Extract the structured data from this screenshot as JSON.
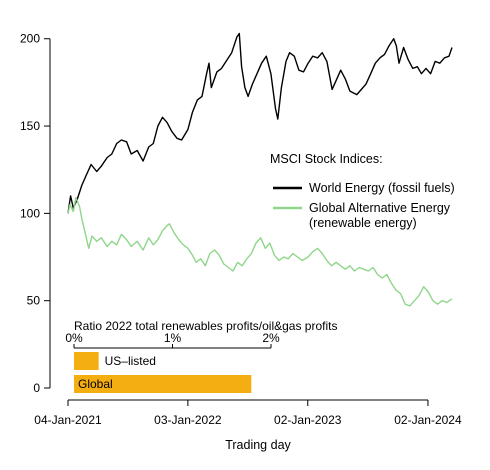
{
  "chart_data": {
    "type": "line",
    "title": "",
    "xlabel": "Trading day",
    "ylabel": "",
    "x_ticks": [
      "04-Jan-2021",
      "03-Jan-2022",
      "02-Jan-2023",
      "02-Jan-2024"
    ],
    "x_range": [
      "2021-01-04",
      "2024-03-15"
    ],
    "y_ticks": [
      0,
      50,
      100,
      150,
      200
    ],
    "ylim": [
      0,
      205
    ],
    "grid": false,
    "legend": {
      "title": "MSCI Stock Indices:",
      "position": "center-right",
      "entries": [
        {
          "label": "World Energy (fossil fuels)",
          "color": "#000000"
        },
        {
          "label_line1": "Global Alternative Energy",
          "label_line2": "(renewable energy)",
          "color": "#8fd68a"
        }
      ]
    },
    "series": [
      {
        "name": "World Energy (fossil fuels)",
        "color": "#000000",
        "points": [
          [
            "2021-01-04",
            100
          ],
          [
            "2021-01-12",
            110
          ],
          [
            "2021-01-20",
            103
          ],
          [
            "2021-02-01",
            108
          ],
          [
            "2021-02-15",
            116
          ],
          [
            "2021-03-01",
            122
          ],
          [
            "2021-03-15",
            128
          ],
          [
            "2021-04-01",
            124
          ],
          [
            "2021-04-15",
            127
          ],
          [
            "2021-05-03",
            132
          ],
          [
            "2021-05-17",
            134
          ],
          [
            "2021-06-01",
            140
          ],
          [
            "2021-06-15",
            142
          ],
          [
            "2021-07-01",
            141
          ],
          [
            "2021-07-15",
            134
          ],
          [
            "2021-08-02",
            136
          ],
          [
            "2021-08-20",
            130
          ],
          [
            "2021-09-06",
            138
          ],
          [
            "2021-09-20",
            140
          ],
          [
            "2021-10-04",
            150
          ],
          [
            "2021-10-18",
            155
          ],
          [
            "2021-11-01",
            152
          ],
          [
            "2021-11-15",
            147
          ],
          [
            "2021-12-01",
            143
          ],
          [
            "2021-12-15",
            142
          ],
          [
            "2022-01-03",
            148
          ],
          [
            "2022-01-17",
            158
          ],
          [
            "2022-02-01",
            165
          ],
          [
            "2022-02-15",
            167
          ],
          [
            "2022-03-01",
            180
          ],
          [
            "2022-03-08",
            186
          ],
          [
            "2022-03-15",
            172
          ],
          [
            "2022-04-01",
            181
          ],
          [
            "2022-04-15",
            183
          ],
          [
            "2022-05-02",
            188
          ],
          [
            "2022-05-16",
            192
          ],
          [
            "2022-06-01",
            201
          ],
          [
            "2022-06-08",
            203
          ],
          [
            "2022-06-15",
            184
          ],
          [
            "2022-06-25",
            172
          ],
          [
            "2022-07-05",
            167
          ],
          [
            "2022-07-18",
            174
          ],
          [
            "2022-08-01",
            180
          ],
          [
            "2022-08-15",
            186
          ],
          [
            "2022-08-29",
            190
          ],
          [
            "2022-09-12",
            180
          ],
          [
            "2022-09-26",
            160
          ],
          [
            "2022-10-03",
            154
          ],
          [
            "2022-10-14",
            172
          ],
          [
            "2022-10-28",
            187
          ],
          [
            "2022-11-08",
            192
          ],
          [
            "2022-11-22",
            190
          ],
          [
            "2022-12-06",
            182
          ],
          [
            "2022-12-20",
            181
          ],
          [
            "2023-01-03",
            186
          ],
          [
            "2023-01-17",
            190
          ],
          [
            "2023-02-01",
            189
          ],
          [
            "2023-02-15",
            192
          ],
          [
            "2023-03-01",
            187
          ],
          [
            "2023-03-17",
            171
          ],
          [
            "2023-03-29",
            176
          ],
          [
            "2023-04-12",
            182
          ],
          [
            "2023-04-26",
            177
          ],
          [
            "2023-05-10",
            170
          ],
          [
            "2023-05-31",
            168
          ],
          [
            "2023-06-14",
            171
          ],
          [
            "2023-06-28",
            174
          ],
          [
            "2023-07-12",
            180
          ],
          [
            "2023-07-26",
            186
          ],
          [
            "2023-08-09",
            189
          ],
          [
            "2023-08-23",
            191
          ],
          [
            "2023-09-06",
            196
          ],
          [
            "2023-09-20",
            200
          ],
          [
            "2023-09-28",
            196
          ],
          [
            "2023-10-06",
            186
          ],
          [
            "2023-10-20",
            195
          ],
          [
            "2023-11-03",
            188
          ],
          [
            "2023-11-17",
            183
          ],
          [
            "2023-12-01",
            184
          ],
          [
            "2023-12-13",
            180
          ],
          [
            "2023-12-27",
            183
          ],
          [
            "2024-01-10",
            180
          ],
          [
            "2024-01-24",
            187
          ],
          [
            "2024-02-07",
            186
          ],
          [
            "2024-02-21",
            189
          ],
          [
            "2024-03-06",
            190
          ],
          [
            "2024-03-15",
            195
          ]
        ]
      },
      {
        "name": "Global Alternative Energy (renewable energy)",
        "color": "#8fd68a",
        "points": [
          [
            "2021-01-04",
            100
          ],
          [
            "2021-01-10",
            105
          ],
          [
            "2021-01-20",
            101
          ],
          [
            "2021-01-28",
            109
          ],
          [
            "2021-02-08",
            104
          ],
          [
            "2021-02-16",
            96
          ],
          [
            "2021-02-26",
            88
          ],
          [
            "2021-03-08",
            80
          ],
          [
            "2021-03-18",
            87
          ],
          [
            "2021-04-01",
            84
          ],
          [
            "2021-04-15",
            86
          ],
          [
            "2021-05-03",
            81
          ],
          [
            "2021-05-17",
            84
          ],
          [
            "2021-06-01",
            82
          ],
          [
            "2021-06-15",
            88
          ],
          [
            "2021-07-01",
            85
          ],
          [
            "2021-07-15",
            81
          ],
          [
            "2021-08-02",
            84
          ],
          [
            "2021-08-20",
            79
          ],
          [
            "2021-09-06",
            86
          ],
          [
            "2021-09-20",
            82
          ],
          [
            "2021-10-04",
            85
          ],
          [
            "2021-10-18",
            90
          ],
          [
            "2021-11-01",
            93
          ],
          [
            "2021-11-08",
            94
          ],
          [
            "2021-11-22",
            89
          ],
          [
            "2021-12-06",
            85
          ],
          [
            "2021-12-20",
            82
          ],
          [
            "2022-01-03",
            80
          ],
          [
            "2022-01-17",
            76
          ],
          [
            "2022-01-28",
            72
          ],
          [
            "2022-02-11",
            74
          ],
          [
            "2022-02-25",
            70
          ],
          [
            "2022-03-11",
            77
          ],
          [
            "2022-03-25",
            79
          ],
          [
            "2022-04-08",
            76
          ],
          [
            "2022-04-22",
            71
          ],
          [
            "2022-05-06",
            69
          ],
          [
            "2022-05-20",
            67
          ],
          [
            "2022-06-03",
            72
          ],
          [
            "2022-06-17",
            70
          ],
          [
            "2022-07-01",
            74
          ],
          [
            "2022-07-15",
            77
          ],
          [
            "2022-07-29",
            83
          ],
          [
            "2022-08-12",
            86
          ],
          [
            "2022-08-26",
            80
          ],
          [
            "2022-09-09",
            83
          ],
          [
            "2022-09-23",
            76
          ],
          [
            "2022-10-07",
            73
          ],
          [
            "2022-10-21",
            75
          ],
          [
            "2022-11-04",
            74
          ],
          [
            "2022-11-18",
            77
          ],
          [
            "2022-12-02",
            75
          ],
          [
            "2022-12-16",
            73
          ],
          [
            "2023-01-03",
            75
          ],
          [
            "2023-01-17",
            78
          ],
          [
            "2023-02-01",
            80
          ],
          [
            "2023-02-15",
            77
          ],
          [
            "2023-03-01",
            73
          ],
          [
            "2023-03-15",
            70
          ],
          [
            "2023-03-29",
            72
          ],
          [
            "2023-04-12",
            70
          ],
          [
            "2023-04-26",
            68
          ],
          [
            "2023-05-10",
            70
          ],
          [
            "2023-05-24",
            67
          ],
          [
            "2023-06-07",
            69
          ],
          [
            "2023-06-21",
            68
          ],
          [
            "2023-07-05",
            67
          ],
          [
            "2023-07-19",
            69
          ],
          [
            "2023-08-02",
            65
          ],
          [
            "2023-08-16",
            63
          ],
          [
            "2023-08-30",
            65
          ],
          [
            "2023-09-13",
            60
          ],
          [
            "2023-09-27",
            56
          ],
          [
            "2023-10-11",
            54
          ],
          [
            "2023-10-25",
            48
          ],
          [
            "2023-11-08",
            47
          ],
          [
            "2023-11-22",
            50
          ],
          [
            "2023-12-06",
            53
          ],
          [
            "2023-12-20",
            58
          ],
          [
            "2024-01-03",
            55
          ],
          [
            "2024-01-17",
            50
          ],
          [
            "2024-01-31",
            48
          ],
          [
            "2024-02-14",
            50
          ],
          [
            "2024-02-28",
            49
          ],
          [
            "2024-03-15",
            51
          ]
        ]
      }
    ],
    "inset": {
      "type": "bar",
      "orientation": "horizontal",
      "title": "Ratio 2022 total renewables profits/oil&gas profits",
      "ticks": [
        "0%",
        "1%",
        "2%"
      ],
      "xlim": [
        0,
        2
      ],
      "color": "#f5ae12",
      "bars": [
        {
          "label": "US–listed",
          "value": 0.25
        },
        {
          "label": "Global",
          "value": 1.8
        }
      ]
    }
  }
}
